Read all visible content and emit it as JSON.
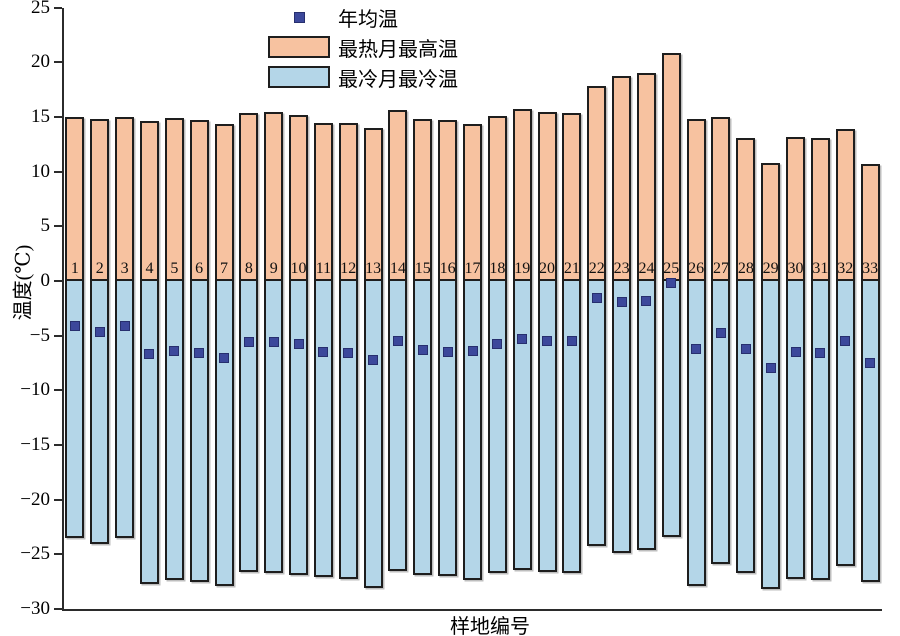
{
  "chart_data": {
    "type": "bar",
    "title": "",
    "xlabel": "样地编号",
    "ylabel": "温度(℃)",
    "ylim": [
      -30,
      25
    ],
    "ytick_step": 5,
    "y_ticks": [
      25,
      20,
      15,
      10,
      5,
      0,
      -5,
      -10,
      -15,
      -20,
      -25,
      -30
    ],
    "grid": false,
    "legend_position": "top-center",
    "bar_edge_color": "#1e1e1e",
    "axis_color": "#2b2b2b",
    "categories": [
      "1",
      "2",
      "3",
      "4",
      "5",
      "6",
      "7",
      "8",
      "9",
      "10",
      "11",
      "12",
      "13",
      "14",
      "15",
      "16",
      "17",
      "18",
      "19",
      "20",
      "21",
      "22",
      "23",
      "24",
      "25",
      "26",
      "27",
      "28",
      "29",
      "30",
      "31",
      "32",
      "33"
    ],
    "series": [
      {
        "name": "年均温",
        "kind": "point",
        "marker": "square",
        "color": "#3c489b",
        "values": [
          -4.1,
          -4.7,
          -4.1,
          -6.7,
          -6.4,
          -6.6,
          -7.0,
          -5.6,
          -5.6,
          -5.8,
          -6.5,
          -6.6,
          -7.2,
          -5.5,
          -6.3,
          -6.5,
          -6.4,
          -5.8,
          -5.3,
          -5.5,
          -5.5,
          -1.6,
          -1.9,
          -1.8,
          -0.2,
          -6.2,
          -4.8,
          -6.2,
          -8.0,
          -6.5,
          -6.6,
          -5.5,
          -7.5
        ]
      },
      {
        "name": "最热月最高温",
        "kind": "bar",
        "color": "#f7c2a0",
        "values": [
          15.0,
          14.8,
          15.0,
          14.6,
          14.9,
          14.7,
          14.4,
          15.4,
          15.5,
          15.2,
          14.5,
          14.5,
          14.0,
          15.6,
          14.8,
          14.7,
          14.4,
          15.1,
          15.7,
          15.5,
          15.4,
          17.8,
          18.8,
          19.0,
          20.9,
          14.8,
          15.0,
          13.1,
          10.8,
          13.2,
          13.1,
          13.9,
          10.7
        ]
      },
      {
        "name": "最冷月最冷温",
        "kind": "bar",
        "color": "#b4d6e8",
        "values": [
          -23.5,
          -24.1,
          -23.5,
          -27.7,
          -27.4,
          -27.5,
          -27.9,
          -26.6,
          -26.7,
          -26.9,
          -27.1,
          -27.3,
          -28.1,
          -26.5,
          -26.9,
          -27.0,
          -27.4,
          -26.7,
          -26.4,
          -26.6,
          -26.7,
          -24.2,
          -24.9,
          -24.6,
          -23.4,
          -27.9,
          -25.9,
          -26.7,
          -28.2,
          -27.3,
          -27.4,
          -26.1,
          -27.5
        ]
      }
    ]
  }
}
